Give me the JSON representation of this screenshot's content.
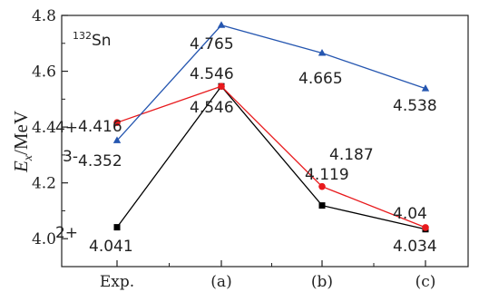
{
  "chart_data": {
    "type": "line",
    "title": "",
    "annotation": {
      "mass": "132",
      "element": "Sn"
    },
    "xlabel": "",
    "ylabel": {
      "symbol": "E",
      "subscript": "x",
      "unit": "/MeV"
    },
    "categories": [
      "Exp.",
      "(a)",
      "(b)",
      "(c)"
    ],
    "ylim": [
      3.9,
      4.8
    ],
    "yticks": [
      "4.0",
      "4.2",
      "4.4",
      "4.6",
      "4.8"
    ],
    "grid": false,
    "series": [
      {
        "name": "2+",
        "color": "#000000",
        "marker": "square",
        "values": [
          4.041,
          4.546,
          4.119,
          4.034
        ],
        "labels": [
          "4.041",
          "4.546",
          "4.119",
          "4.034"
        ]
      },
      {
        "name": "4+",
        "color": "#e8191c",
        "marker": "circle",
        "values": [
          4.416,
          4.546,
          4.187,
          4.04
        ],
        "labels": [
          "4.416",
          "4.546",
          "4.187",
          "4.04"
        ]
      },
      {
        "name": "3-",
        "color": "#2556b0",
        "marker": "triangle",
        "values": [
          4.352,
          4.765,
          4.665,
          4.538
        ],
        "labels": [
          "4.352",
          "4.765",
          "4.665",
          "4.538"
        ]
      }
    ]
  }
}
